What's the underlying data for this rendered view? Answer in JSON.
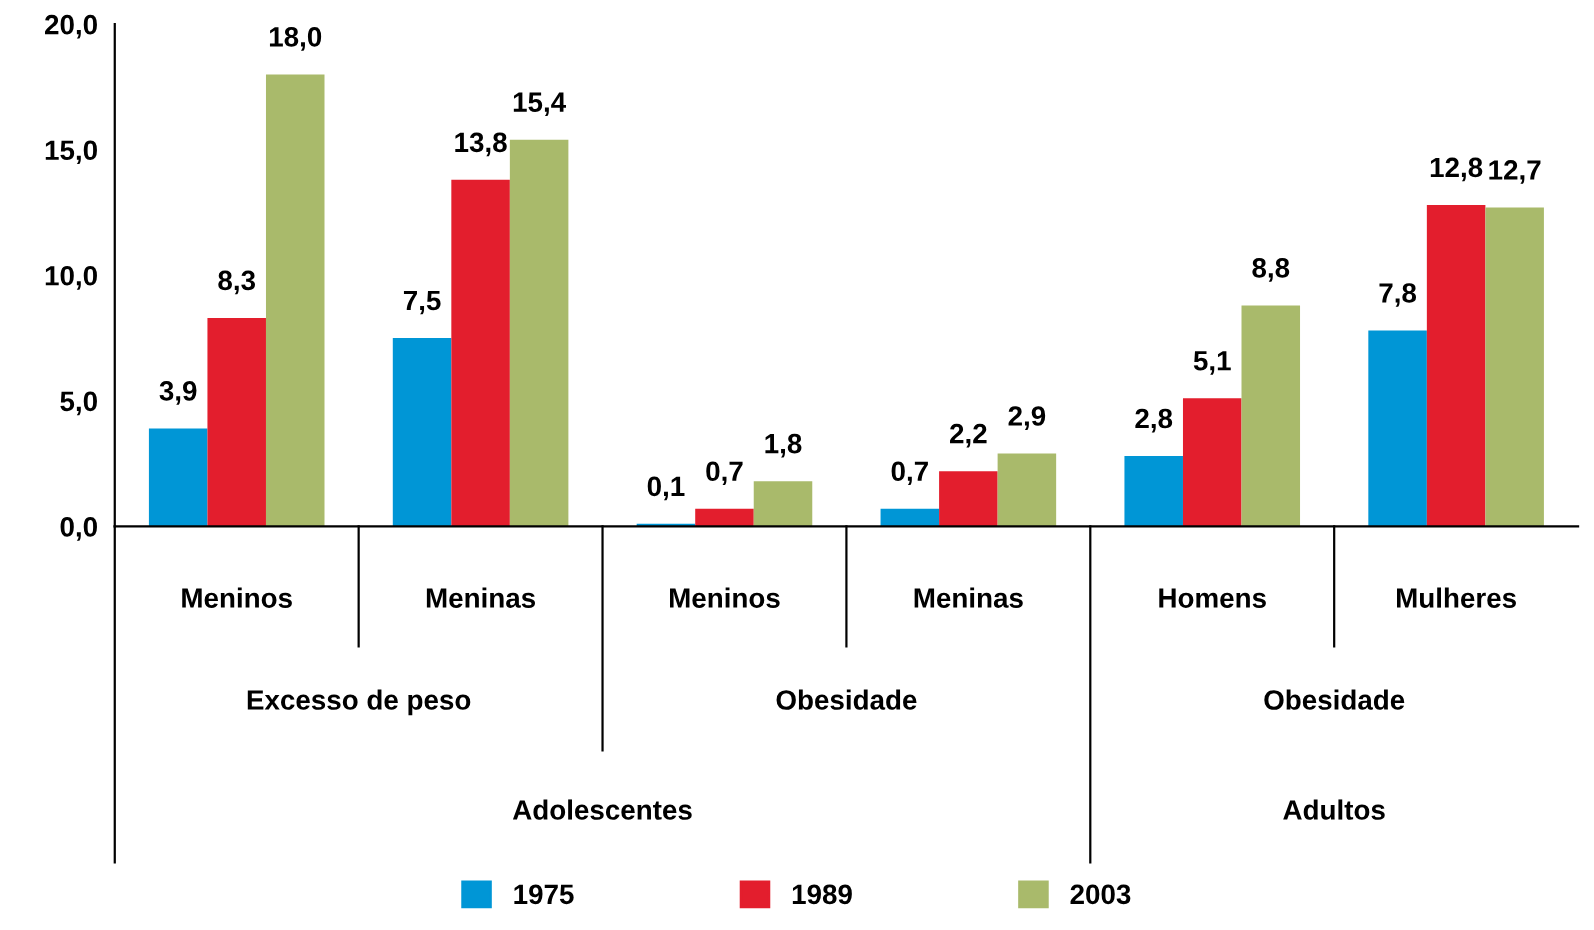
{
  "chart_data": {
    "type": "bar",
    "categories": [
      "Meninos",
      "Meninas",
      "Meninos",
      "Meninas",
      "Homens",
      "Mulheres"
    ],
    "series": [
      {
        "name": "1975",
        "color": "#0096d6",
        "values": [
          3.9,
          7.5,
          0.1,
          0.7,
          2.8,
          7.8
        ],
        "value_labels": [
          "3,9",
          "7,5",
          "0,1",
          "0,7",
          "2,8",
          "7,8"
        ]
      },
      {
        "name": "1989",
        "color": "#e31e2d",
        "values": [
          8.3,
          13.8,
          0.7,
          2.2,
          5.1,
          12.8
        ],
        "value_labels": [
          "8,3",
          "13,8",
          "0,7",
          "2,2",
          "5,1",
          "12,8"
        ]
      },
      {
        "name": "2003",
        "color": "#a9ba6b",
        "values": [
          18.0,
          15.4,
          1.8,
          2.9,
          8.8,
          12.7
        ],
        "value_labels": [
          "18,0",
          "15,4",
          "1,8",
          "2,9",
          "8,8",
          "12,7"
        ]
      }
    ],
    "ylim": [
      0,
      20
    ],
    "yticks": [
      {
        "value": 0,
        "label": "0,0"
      },
      {
        "value": 5,
        "label": "5,0"
      },
      {
        "value": 10,
        "label": "10,0"
      },
      {
        "value": 15,
        "label": "15,0"
      },
      {
        "value": 20,
        "label": "20,0"
      }
    ],
    "annotations": [
      "Excesso de peso",
      "Obesidade",
      "Obesidade",
      "Adolescentes",
      "Adultos"
    ],
    "grid": false,
    "legend": "bottom"
  }
}
